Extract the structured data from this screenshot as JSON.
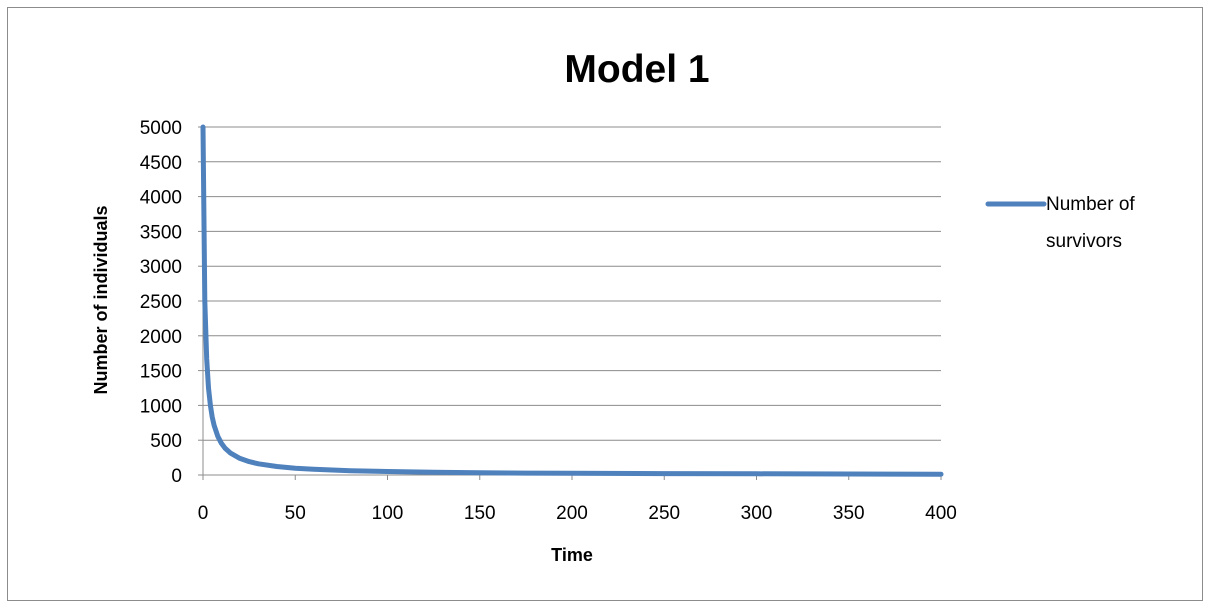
{
  "chart_data": {
    "type": "line",
    "title": "Model 1",
    "xlabel": "Time",
    "ylabel": "Number of individuals",
    "xlim": [
      0,
      400
    ],
    "ylim": [
      0,
      5000
    ],
    "xticks": [
      0,
      50,
      100,
      150,
      200,
      250,
      300,
      350,
      400
    ],
    "yticks": [
      0,
      500,
      1000,
      1500,
      2000,
      2500,
      3000,
      3500,
      4000,
      4500,
      5000
    ],
    "grid": "horizontal",
    "legend_position": "right",
    "series": [
      {
        "name": "Number of survivors",
        "color": "#4f81bd",
        "x": [
          0,
          1,
          2,
          3,
          4,
          5,
          6,
          8,
          10,
          12,
          15,
          20,
          25,
          30,
          40,
          50,
          60,
          80,
          100,
          125,
          150,
          175,
          200,
          250,
          300,
          350,
          400
        ],
        "y": [
          5000,
          2500,
          1667,
          1250,
          1000,
          833,
          714,
          556,
          455,
          385,
          313,
          238,
          192,
          161,
          122,
          98,
          82,
          62,
          50,
          40,
          33,
          28,
          25,
          20,
          17,
          14,
          12
        ]
      }
    ]
  },
  "legend": {
    "line1": "Number of",
    "line2": "survivors"
  }
}
